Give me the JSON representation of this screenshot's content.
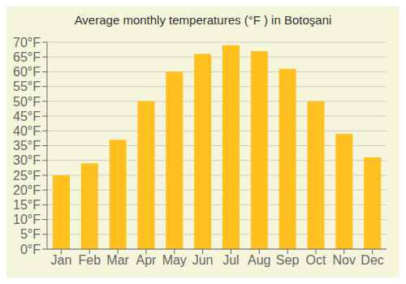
{
  "chart_data": {
    "type": "bar",
    "title": "Average monthly temperatures (°F ) in Botoşani",
    "categories": [
      "Jan",
      "Feb",
      "Mar",
      "Apr",
      "May",
      "Jun",
      "Jul",
      "Aug",
      "Sep",
      "Oct",
      "Nov",
      "Dec"
    ],
    "values": [
      25,
      29,
      37,
      50,
      60,
      66,
      69,
      67,
      61,
      50,
      39,
      31
    ],
    "color": "#FFC020",
    "ylim": [
      0,
      70
    ],
    "yticks": [
      {
        "value": 0,
        "label": "0°F"
      },
      {
        "value": 5,
        "label": "5°F"
      },
      {
        "value": 10,
        "label": "10°F"
      },
      {
        "value": 15,
        "label": "15°F"
      },
      {
        "value": 20,
        "label": "20°F"
      },
      {
        "value": 25,
        "label": "25°F"
      },
      {
        "value": 30,
        "label": "30°F"
      },
      {
        "value": 35,
        "label": "35°F"
      },
      {
        "value": 40,
        "label": "40°F"
      },
      {
        "value": 45,
        "label": "45°F"
      },
      {
        "value": 50,
        "label": "50°F"
      },
      {
        "value": 55,
        "label": "55°F"
      },
      {
        "value": 60,
        "label": "60°F"
      },
      {
        "value": 65,
        "label": "65°F"
      },
      {
        "value": 70,
        "label": "70°F"
      }
    ],
    "grid": true
  }
}
